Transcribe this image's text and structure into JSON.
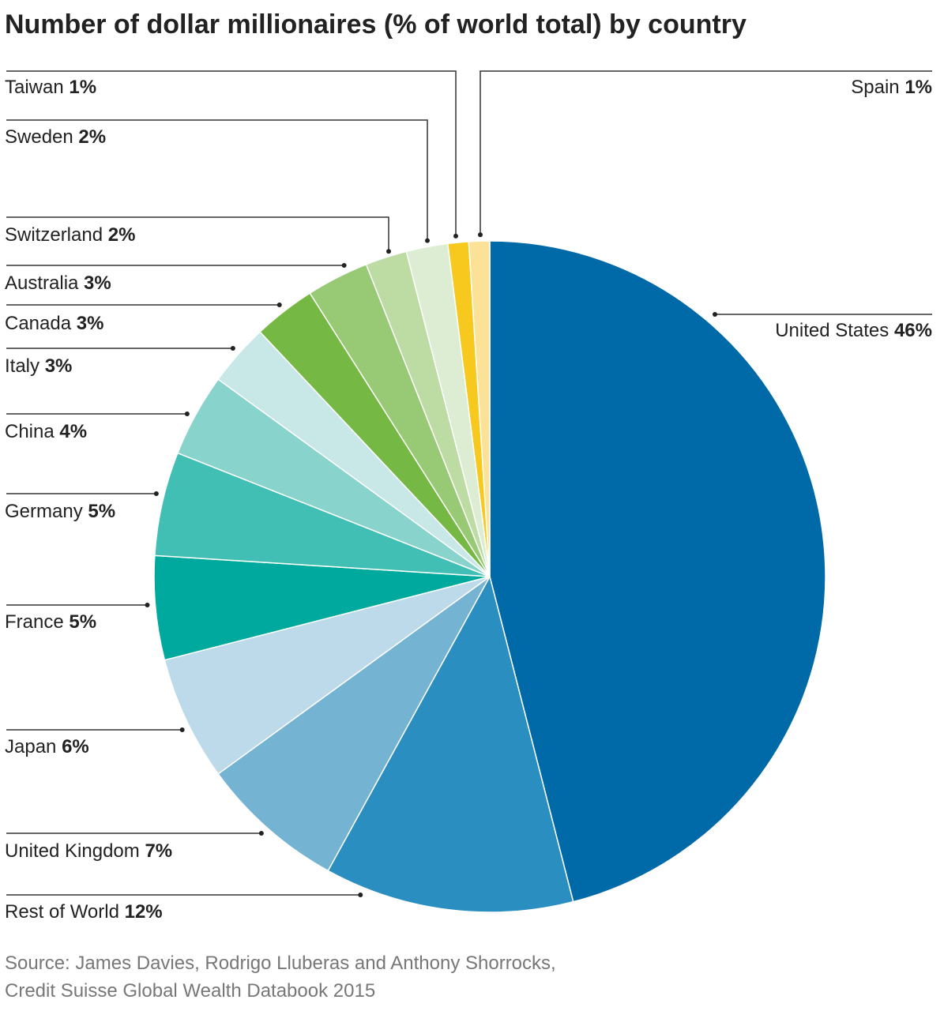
{
  "chart_data": {
    "type": "pie",
    "title": "Number of dollar millionaires (% of world total) by country",
    "categories": [
      "United States",
      "Rest of World",
      "United Kingdom",
      "Japan",
      "France",
      "Germany",
      "China",
      "Italy",
      "Canada",
      "Australia",
      "Switzerland",
      "Sweden",
      "Taiwan",
      "Spain"
    ],
    "values": [
      46,
      12,
      7,
      6,
      5,
      5,
      4,
      3,
      3,
      3,
      2,
      2,
      1,
      1
    ],
    "value_labels": [
      "46%",
      "12%",
      "7%",
      "6%",
      "5%",
      "5%",
      "4%",
      "3%",
      "3%",
      "3%",
      "2%",
      "2%",
      "1%",
      "1%"
    ],
    "colors": [
      "#0069a8",
      "#2a8fc0",
      "#75b3d3",
      "#bddaea",
      "#00a99d",
      "#42bfb4",
      "#88d4cc",
      "#c7e8e6",
      "#75b843",
      "#98c975",
      "#bcdca3",
      "#dcedd3",
      "#f7c81e",
      "#fce296"
    ],
    "source": [
      "Source: James Davies, Rodrigo Lluberas and Anthony Shorrocks,",
      "Credit Suisse Global Wealth Databook 2015"
    ]
  }
}
